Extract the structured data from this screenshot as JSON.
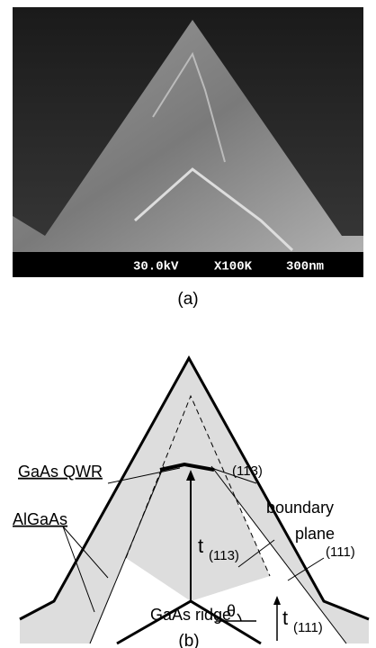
{
  "panel_a": {
    "scale_bar": {
      "voltage": "30.0kV",
      "magnification": "X100K",
      "length": "300nm"
    },
    "caption": "(a)"
  },
  "panel_b": {
    "labels": {
      "qwr": "GaAs QWR",
      "facet_113": "(113)",
      "boundary_1": "boundary",
      "boundary_2": "plane",
      "algaas": "AlGaAs",
      "facet_111": "(111)",
      "t113_main": "t",
      "t113_sub": "(113)",
      "theta": "θ",
      "t111_main": "t",
      "t111_sub": "(111)",
      "ridge": "GaAs ridge"
    },
    "caption": "(b)"
  }
}
